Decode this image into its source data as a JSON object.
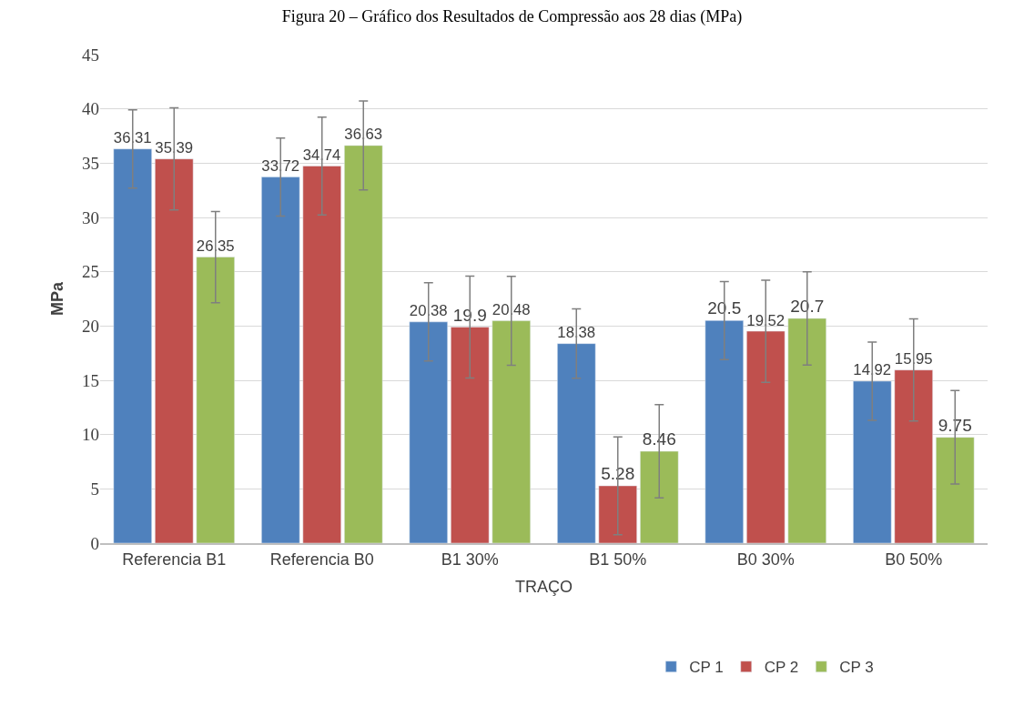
{
  "chart_data": {
    "type": "bar",
    "title": "Figura 20 – Gráfico dos Resultados de Compressão aos 28 dias (MPa)",
    "xlabel": "TRAÇO",
    "ylabel": "MPa",
    "categories": [
      "Referencia B1",
      "Referencia B0",
      "B1 30%",
      "B1 50%",
      "B0 30%",
      "B0 50%"
    ],
    "series": [
      {
        "name": "CP 1",
        "color": "#4f81bd",
        "values": [
          36.31,
          33.72,
          20.38,
          18.38,
          20.5,
          14.92
        ],
        "errors": [
          3.6,
          3.6,
          3.6,
          3.2,
          3.6,
          3.6
        ]
      },
      {
        "name": "CP 2",
        "color": "#c0504d",
        "values": [
          35.39,
          34.74,
          19.9,
          5.28,
          19.52,
          15.95
        ],
        "errors": [
          4.7,
          4.5,
          4.7,
          4.5,
          4.7,
          4.7
        ]
      },
      {
        "name": "CP 3",
        "color": "#9bbb59",
        "values": [
          26.35,
          36.63,
          20.48,
          8.46,
          20.7,
          9.75
        ],
        "errors": [
          4.2,
          4.1,
          4.1,
          4.3,
          4.3,
          4.3
        ]
      }
    ],
    "ylim": [
      0,
      45
    ],
    "yticks": [
      0,
      5,
      10,
      15,
      20,
      25,
      30,
      35,
      40,
      45
    ],
    "grid": "y",
    "legend": "bottom",
    "data_labels": true
  }
}
